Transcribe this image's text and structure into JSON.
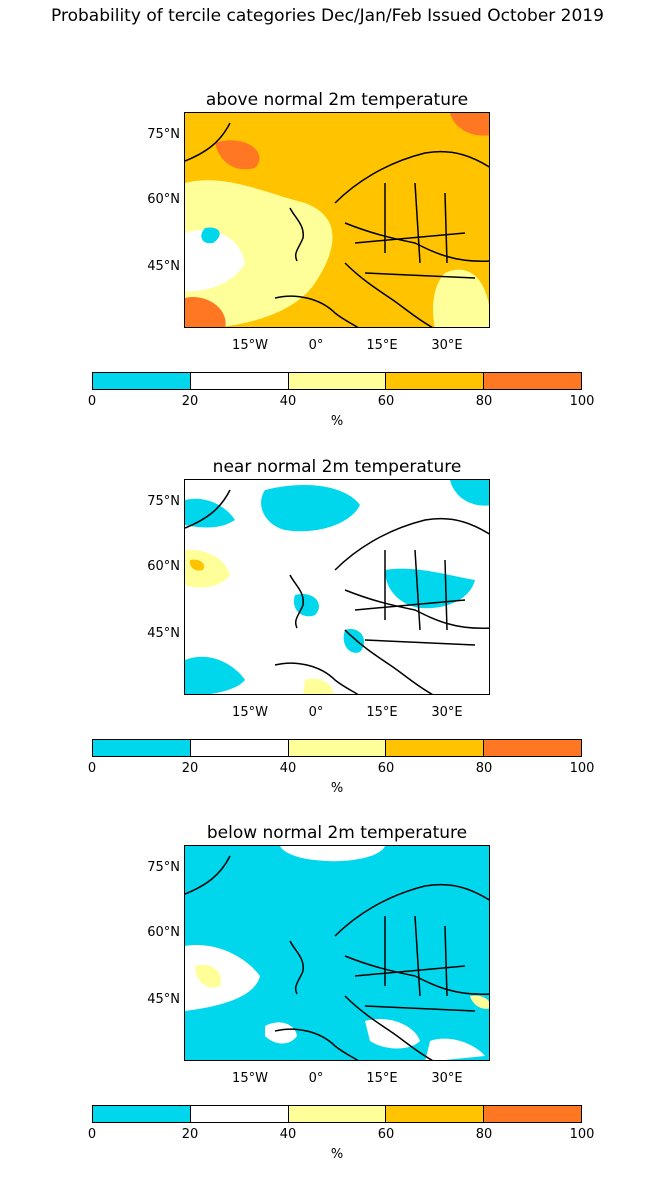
{
  "suptitle": "Probability of tercile categories Dec/Jan/Feb Issued October 2019",
  "colors": {
    "c0_20": "#00d7ec",
    "c20_40": "#ffffff",
    "c40_60": "#ffff99",
    "c60_80": "#ffc300",
    "c80_100": "#ff7722",
    "coast": "#000000"
  },
  "lat_labels": [
    "75°N",
    "60°N",
    "45°N"
  ],
  "lon_labels": [
    "15°W",
    "0°",
    "15°E",
    "30°E"
  ],
  "colorbar": {
    "ticks": [
      "0",
      "20",
      "40",
      "60",
      "80",
      "100"
    ],
    "label": "%"
  },
  "panels": [
    {
      "title": "above normal 2m temperature",
      "dominant": "c60_80"
    },
    {
      "title": "near normal 2m temperature",
      "dominant": "c20_40"
    },
    {
      "title": "below normal 2m temperature",
      "dominant": "c0_20"
    }
  ]
}
